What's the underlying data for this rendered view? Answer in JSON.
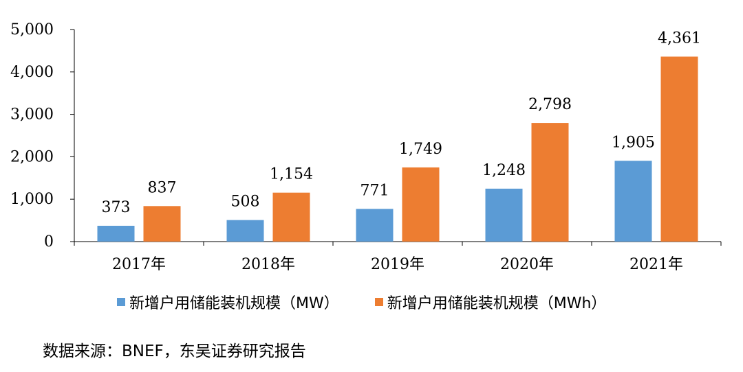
{
  "chart_data": {
    "type": "bar",
    "categories": [
      "2017年",
      "2018年",
      "2019年",
      "2020年",
      "2021年"
    ],
    "series": [
      {
        "name": "新增户用储能装机规模（MW）",
        "values": [
          373,
          508,
          771,
          1248,
          1905
        ],
        "labels": [
          "373",
          "508",
          "771",
          "1,248",
          "1,905"
        ],
        "color": "#5B9BD5"
      },
      {
        "name": "新增户用储能装机规模（MWh）",
        "values": [
          837,
          1154,
          1749,
          2798,
          4361
        ],
        "labels": [
          "837",
          "1,154",
          "1,749",
          "2,798",
          "4,361"
        ],
        "color": "#ED7D31"
      }
    ],
    "ylim": [
      0,
      5000
    ],
    "yticks": [
      "0",
      "1,000",
      "2,000",
      "3,000",
      "4,000",
      "5,000"
    ],
    "grid": false,
    "legend_position": "bottom"
  },
  "source": "数据来源：BNEF，东吴证券研究报告"
}
